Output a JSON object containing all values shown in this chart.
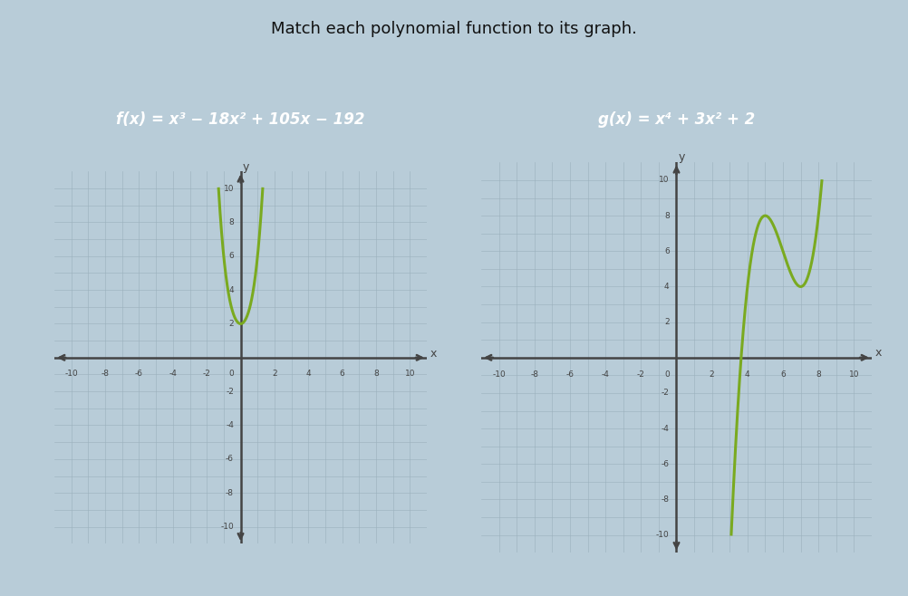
{
  "title": "Match each polynomial function to its graph.",
  "func1_label": "f(x) = x³ − 18x² + 105x − 192",
  "func2_label": "g(x) = x⁴ + 3x² + 2",
  "bg_outer": "#b8ccd8",
  "bg_panel": "#c8d8e4",
  "bg_graph": "#dde8ee",
  "grid_color": "#9ab0bc",
  "axis_color": "#444444",
  "curve_color": "#7aaa20",
  "label_box_color": "#3d6eb5",
  "label_text_color": "#ffffff",
  "xticks": [
    -10,
    -8,
    -6,
    -4,
    -2,
    0,
    2,
    4,
    6,
    8,
    10
  ],
  "yticks": [
    -10,
    -8,
    -6,
    -4,
    -2,
    0,
    2,
    4,
    6,
    8,
    10
  ]
}
